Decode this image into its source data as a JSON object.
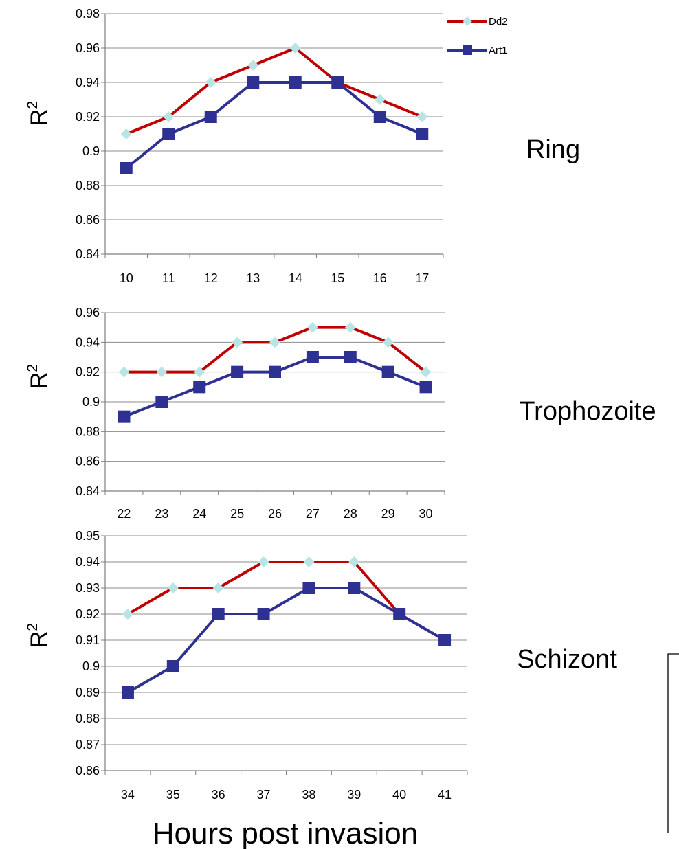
{
  "chart_data": [
    {
      "type": "line",
      "stage_label": "Ring",
      "ylabel": "R",
      "ylabel_sup": "2",
      "categories": [
        "10",
        "11",
        "12",
        "13",
        "14",
        "15",
        "16",
        "17"
      ],
      "ylim": [
        0.84,
        0.98
      ],
      "yticks": [
        "0.84",
        "0.86",
        "0.88",
        "0.9",
        "0.92",
        "0.94",
        "0.96",
        "0.98"
      ],
      "grid": true,
      "legend": "top-right",
      "series": [
        {
          "name": "Dd2",
          "color": "#c00000",
          "marker": "diamond",
          "marker_color": "#b7e4e4",
          "values": [
            0.91,
            0.92,
            0.94,
            0.95,
            0.96,
            0.94,
            0.93,
            0.92
          ]
        },
        {
          "name": "Art1",
          "color": "#2e3192",
          "marker": "square",
          "marker_color": "#2e3192",
          "values": [
            0.89,
            0.91,
            0.92,
            0.94,
            0.94,
            0.94,
            0.92,
            0.91
          ]
        }
      ]
    },
    {
      "type": "line",
      "stage_label": "Trophozoite",
      "ylabel": "R",
      "ylabel_sup": "2",
      "categories": [
        "22",
        "23",
        "24",
        "25",
        "26",
        "27",
        "28",
        "29",
        "30"
      ],
      "ylim": [
        0.84,
        0.96
      ],
      "yticks": [
        "0.84",
        "0.86",
        "0.88",
        "0.9",
        "0.92",
        "0.94",
        "0.96"
      ],
      "grid": true,
      "series": [
        {
          "name": "Dd2",
          "color": "#c00000",
          "marker": "diamond",
          "marker_color": "#b7e4e4",
          "values": [
            0.92,
            0.92,
            0.92,
            0.94,
            0.94,
            0.95,
            0.95,
            0.94,
            0.92
          ]
        },
        {
          "name": "Art1",
          "color": "#2e3192",
          "marker": "square",
          "marker_color": "#2e3192",
          "values": [
            0.89,
            0.9,
            0.91,
            0.92,
            0.92,
            0.93,
            0.93,
            0.92,
            0.91
          ]
        }
      ]
    },
    {
      "type": "line",
      "stage_label": "Schizont",
      "ylabel": "R",
      "ylabel_sup": "2",
      "xlabel": "Hours post invasion",
      "categories": [
        "34",
        "35",
        "36",
        "37",
        "38",
        "39",
        "40",
        "41"
      ],
      "ylim": [
        0.86,
        0.95
      ],
      "yticks": [
        "0.86",
        "0.87",
        "0.88",
        "0.89",
        "0.9",
        "0.91",
        "0.92",
        "0.93",
        "0.94",
        "0.95"
      ],
      "grid": true,
      "series": [
        {
          "name": "Dd2",
          "color": "#c00000",
          "marker": "diamond",
          "marker_color": "#b7e4e4",
          "values": [
            0.92,
            0.93,
            0.93,
            0.94,
            0.94,
            0.94,
            0.92,
            0.91
          ]
        },
        {
          "name": "Art1",
          "color": "#2e3192",
          "marker": "square",
          "marker_color": "#2e3192",
          "values": [
            0.89,
            0.9,
            0.92,
            0.92,
            0.93,
            0.93,
            0.92,
            0.91
          ]
        }
      ]
    }
  ]
}
